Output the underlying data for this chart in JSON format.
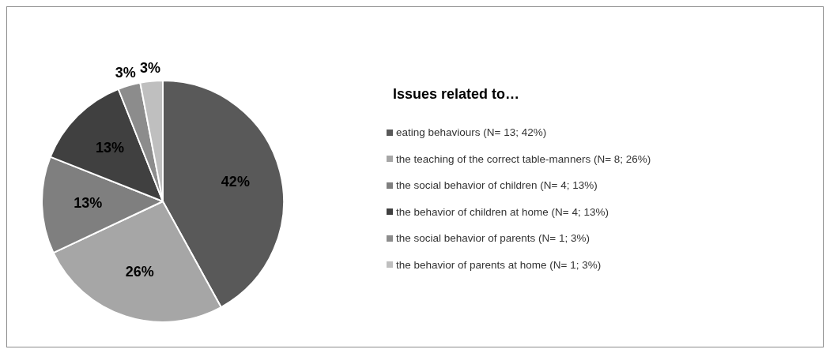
{
  "chart_data": {
    "type": "pie",
    "title": "Issues related to…",
    "categories": [
      "eating behaviours (N= 13; 42%)",
      "the teaching of the correct table-manners (N= 8; 26%)",
      "the social behavior of children (N= 4; 13%)",
      "the behavior of children at home (N= 4; 13%)",
      "the social behavior of parents (N= 1; 3%)",
      "the behavior of parents at home (N= 1; 3%)"
    ],
    "values": [
      42,
      26,
      13,
      13,
      3,
      3
    ],
    "value_labels": [
      "42%",
      "26%",
      "13%",
      "13%",
      "3%",
      "3%"
    ],
    "colors": [
      "#595959",
      "#a6a6a6",
      "#7f7f7f",
      "#404040",
      "#8c8c8c",
      "#bfbfbf"
    ],
    "legend": "right"
  }
}
